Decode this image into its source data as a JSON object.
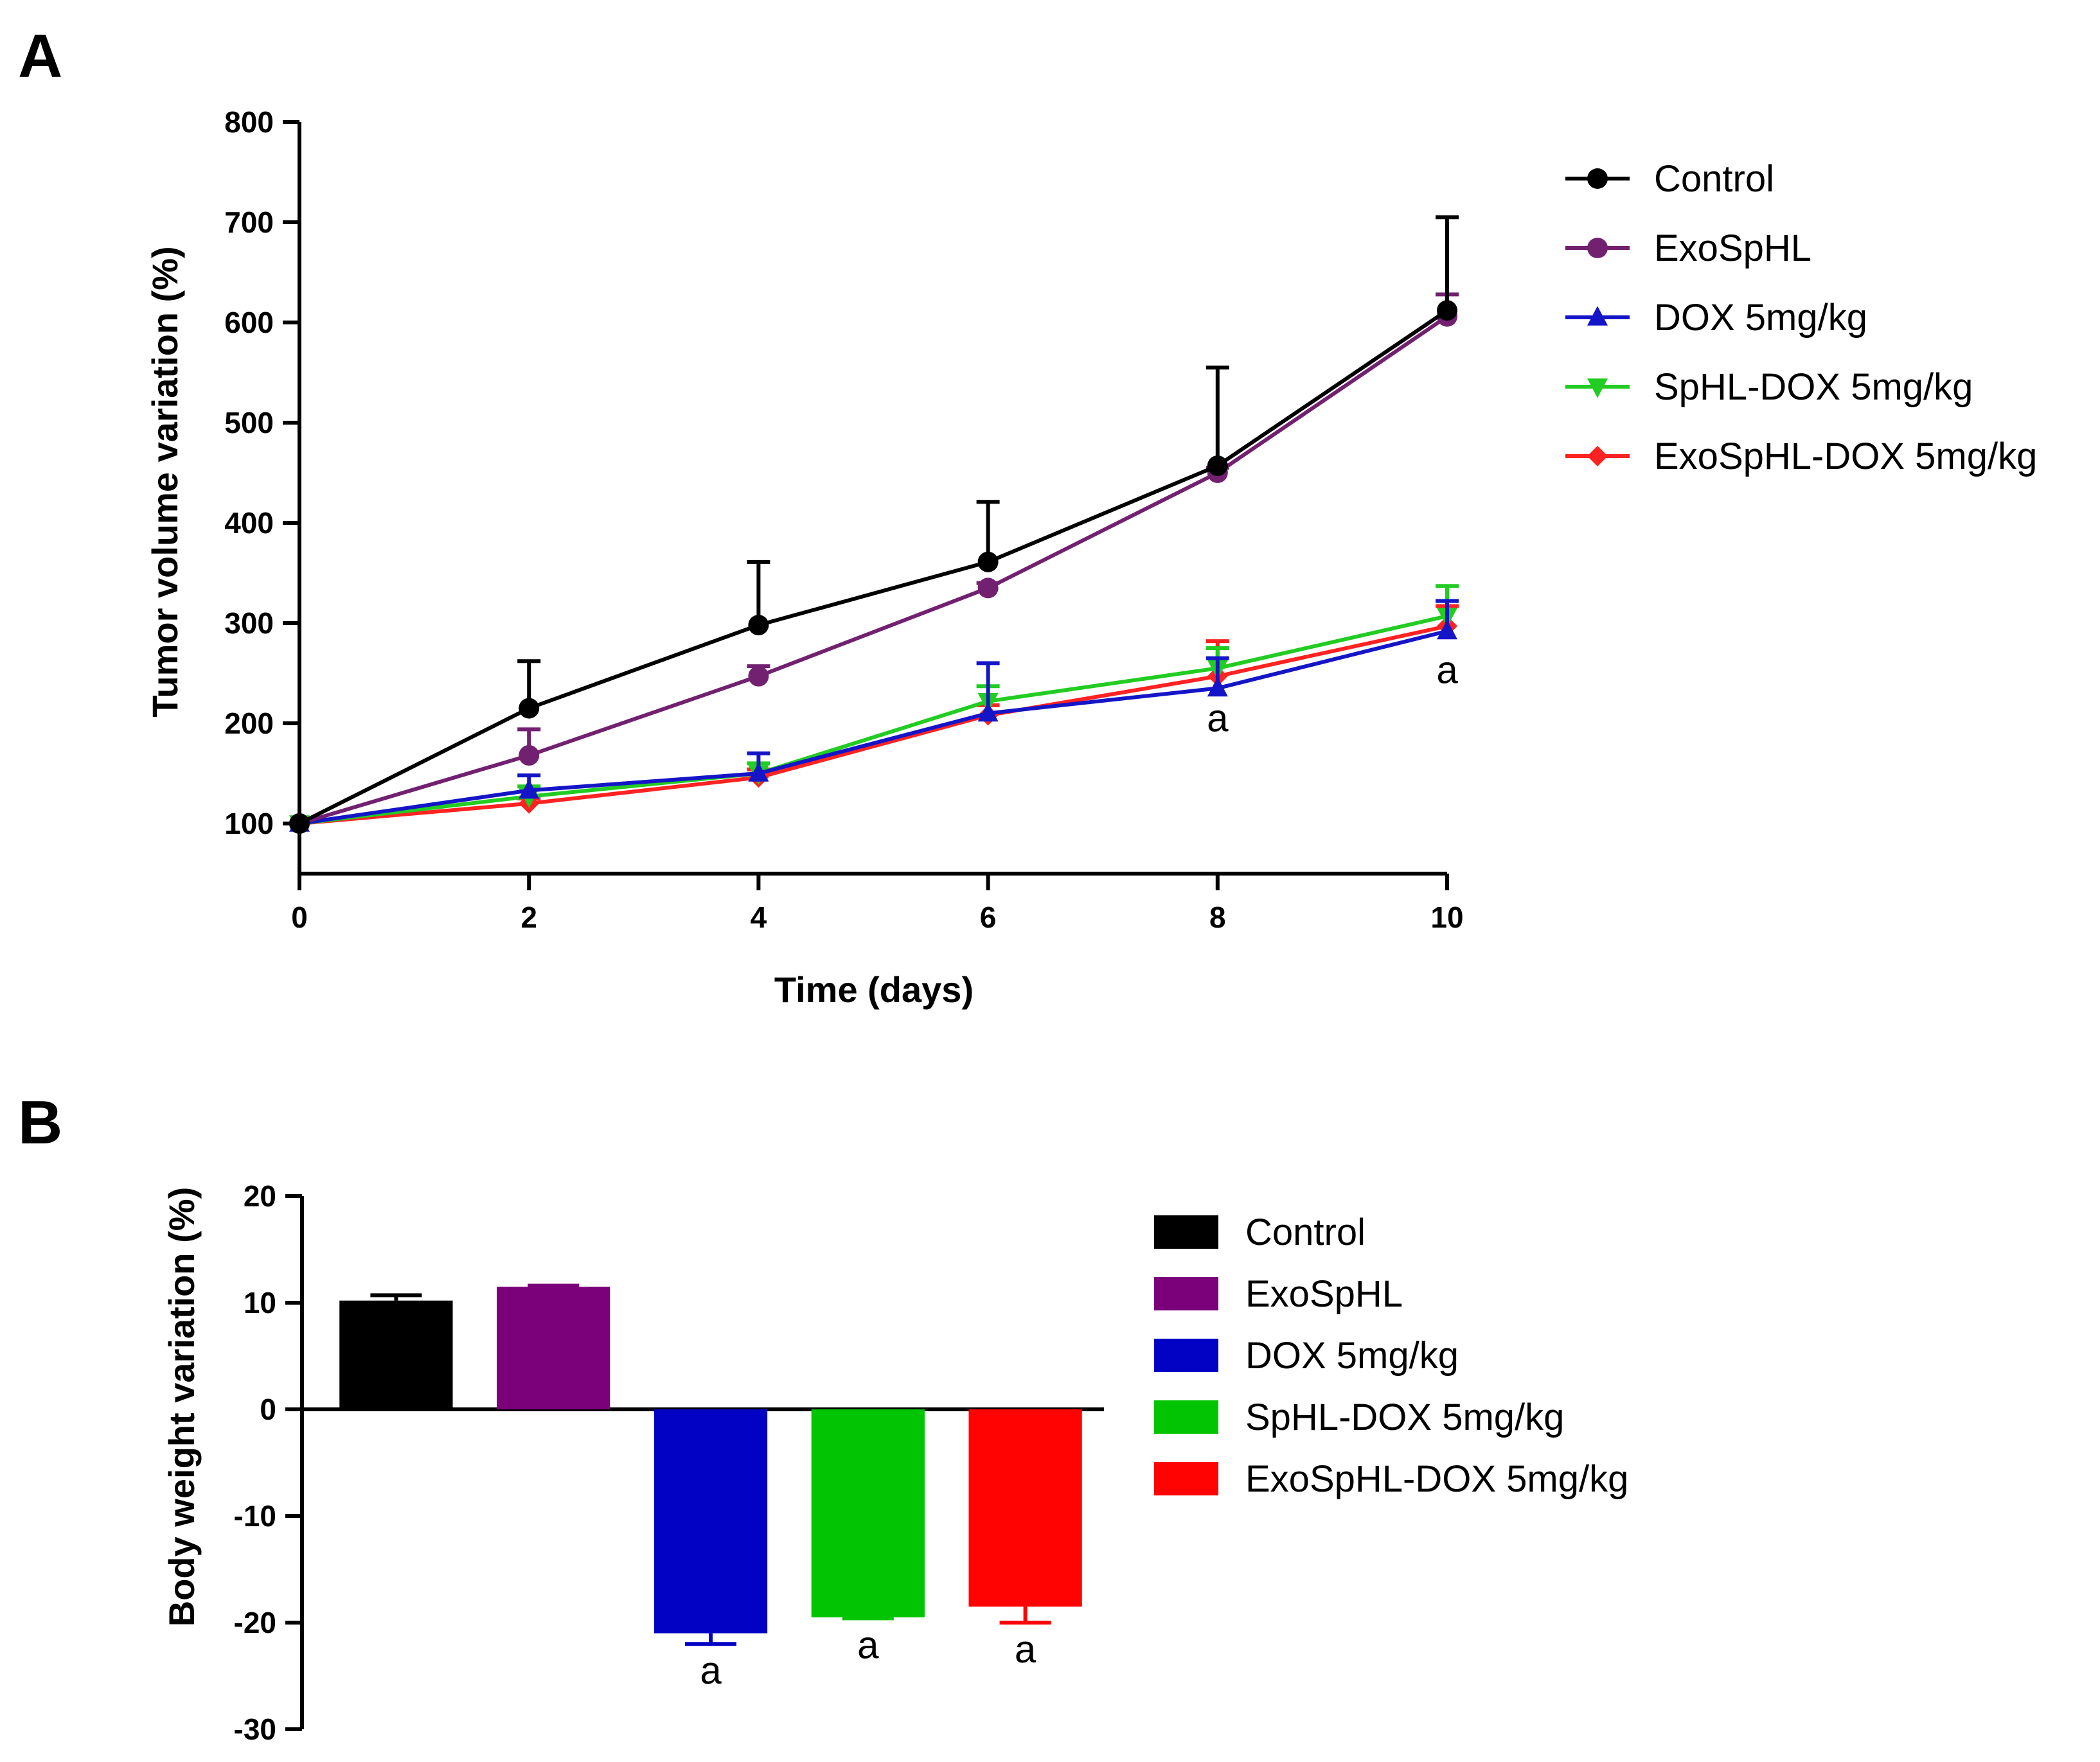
{
  "chart_data": [
    {
      "panel": "A",
      "type": "line",
      "xlabel": "Time (days)",
      "ylabel": "Tumor volume variation (%)",
      "xlim": [
        0,
        10
      ],
      "ylim": [
        50,
        800
      ],
      "x": [
        0,
        2,
        4,
        6,
        8,
        10
      ],
      "xticks": [
        "0",
        "2",
        "4",
        "6",
        "8",
        "10"
      ],
      "yticks": [
        "100",
        "200",
        "300",
        "400",
        "500",
        "600",
        "700",
        "800"
      ],
      "grid": false,
      "legend_position": "right",
      "series": [
        {
          "name": "Control",
          "color": "#000000",
          "marker": "circle",
          "values": [
            100,
            215,
            298,
            361,
            457,
            612
          ],
          "errors": [
            0,
            47,
            63,
            60,
            98,
            93
          ]
        },
        {
          "name": "ExoSpHL",
          "color": "#722170",
          "marker": "circle",
          "values": [
            100,
            168,
            247,
            335,
            450,
            606
          ],
          "errors": [
            0,
            26,
            10,
            5,
            5,
            22
          ]
        },
        {
          "name": "DOX 5mg/kg",
          "color": "#1515c8",
          "marker": "triangle-up",
          "values": [
            100,
            133,
            150,
            210,
            235,
            292
          ],
          "errors": [
            0,
            15,
            20,
            50,
            30,
            30
          ]
        },
        {
          "name": "SpHL-DOX 5mg/kg",
          "color": "#22cc22",
          "marker": "triangle-down",
          "values": [
            100,
            127,
            150,
            222,
            255,
            307
          ],
          "errors": [
            0,
            10,
            10,
            15,
            20,
            30
          ]
        },
        {
          "name": "ExoSpHL-DOX 5mg/kg",
          "color": "#ff2222",
          "marker": "diamond",
          "values": [
            100,
            120,
            146,
            208,
            247,
            297
          ],
          "errors": [
            0,
            5,
            8,
            10,
            35,
            20
          ]
        }
      ],
      "annotations": [
        {
          "text": "a",
          "x": 8,
          "y": 192
        },
        {
          "text": "a",
          "x": 10,
          "y": 240
        }
      ]
    },
    {
      "panel": "B",
      "type": "bar",
      "xlabel": "",
      "ylabel": "Body weight variation (%)",
      "ylim": [
        -30,
        20
      ],
      "yticks": [
        "20",
        "10",
        "0",
        "-10",
        "-20",
        "-30"
      ],
      "grid": false,
      "legend_position": "right",
      "categories": [
        "Control",
        "ExoSpHL",
        "DOX 5mg/kg",
        "SpHL-DOX 5mg/kg",
        "ExoSpHL-DOX 5mg/kg"
      ],
      "colors": [
        "#000000",
        "#7b017b",
        "#0202c4",
        "#02c402",
        "#ff0202"
      ],
      "values": [
        10.2,
        11.5,
        -21,
        -19.5,
        -18.5
      ],
      "errors": [
        0.5,
        0.1,
        1.0,
        0.1,
        1.5
      ],
      "annotations": [
        {
          "text": "a",
          "category": "DOX 5mg/kg"
        },
        {
          "text": "a",
          "category": "SpHL-DOX 5mg/kg"
        },
        {
          "text": "a",
          "category": "ExoSpHL-DOX 5mg/kg"
        }
      ]
    }
  ]
}
